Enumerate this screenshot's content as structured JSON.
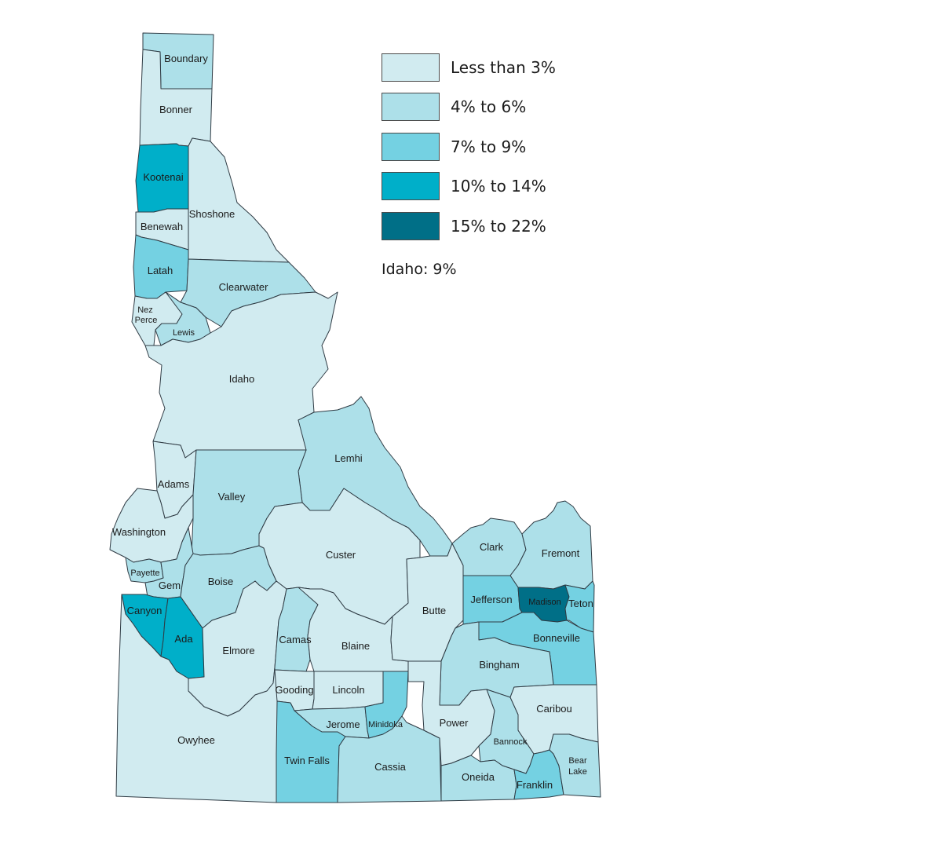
{
  "legend": [
    {
      "label": "Less than 3%",
      "color": "#d1ebf0"
    },
    {
      "label": "4% to 6%",
      "color": "#ade0e9"
    },
    {
      "label": "7% to 9%",
      "color": "#74d1e2"
    },
    {
      "label": "10% to 14%",
      "color": "#00afc9"
    },
    {
      "label": "15% to 22%",
      "color": "#006f87"
    }
  ],
  "state_note": "Idaho: 9%",
  "counties": [
    {
      "name": "Boundary",
      "bin": 1
    },
    {
      "name": "Bonner",
      "bin": 0
    },
    {
      "name": "Kootenai",
      "bin": 3
    },
    {
      "name": "Shoshone",
      "bin": 0
    },
    {
      "name": "Benewah",
      "bin": 0
    },
    {
      "name": "Latah",
      "bin": 2
    },
    {
      "name": "Clearwater",
      "bin": 1
    },
    {
      "name": "Nez Perce",
      "bin": 0
    },
    {
      "name": "Lewis",
      "bin": 1
    },
    {
      "name": "Idaho",
      "bin": 0
    },
    {
      "name": "Lemhi",
      "bin": 1
    },
    {
      "name": "Adams",
      "bin": 0
    },
    {
      "name": "Valley",
      "bin": 1
    },
    {
      "name": "Washington",
      "bin": 0
    },
    {
      "name": "Custer",
      "bin": 0
    },
    {
      "name": "Payette",
      "bin": 1
    },
    {
      "name": "Gem",
      "bin": 1
    },
    {
      "name": "Boise",
      "bin": 1
    },
    {
      "name": "Canyon",
      "bin": 3
    },
    {
      "name": "Ada",
      "bin": 3
    },
    {
      "name": "Elmore",
      "bin": 0
    },
    {
      "name": "Owyhee",
      "bin": 0
    },
    {
      "name": "Camas",
      "bin": 1
    },
    {
      "name": "Blaine",
      "bin": 0
    },
    {
      "name": "Butte",
      "bin": 0
    },
    {
      "name": "Clark",
      "bin": 1
    },
    {
      "name": "Fremont",
      "bin": 1
    },
    {
      "name": "Jefferson",
      "bin": 2
    },
    {
      "name": "Madison",
      "bin": 4
    },
    {
      "name": "Teton",
      "bin": 2
    },
    {
      "name": "Bonneville",
      "bin": 2
    },
    {
      "name": "Bingham",
      "bin": 1
    },
    {
      "name": "Gooding",
      "bin": 0
    },
    {
      "name": "Lincoln",
      "bin": 0
    },
    {
      "name": "Jerome",
      "bin": 1
    },
    {
      "name": "Minidoka",
      "bin": 2
    },
    {
      "name": "Twin Falls",
      "bin": 2
    },
    {
      "name": "Cassia",
      "bin": 1
    },
    {
      "name": "Power",
      "bin": 0
    },
    {
      "name": "Bannock",
      "bin": 1
    },
    {
      "name": "Caribou",
      "bin": 0
    },
    {
      "name": "Oneida",
      "bin": 1
    },
    {
      "name": "Franklin",
      "bin": 2
    },
    {
      "name": "Bear Lake",
      "bin": 1
    }
  ]
}
